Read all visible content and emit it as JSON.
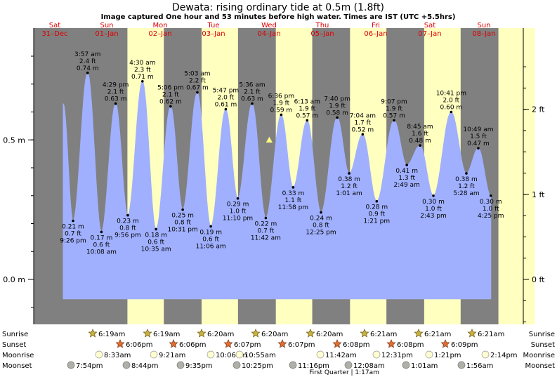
{
  "header": {
    "title": "Dewata: rising  ordinary tide at 0.5m (1.8ft)",
    "subtitle": "Image captured One hour and 53 minutes before high water. Times are IST (UTC +5.5hrs)"
  },
  "colors": {
    "night": "#808080",
    "day": "#ffffc0",
    "tide_fill": "#a0b0ff",
    "tide_stroke": "#a0b0ff",
    "day_label": "#dd0000",
    "marker": "#ffff80"
  },
  "chart_data": {
    "type": "area",
    "title": "Dewata: rising  ordinary tide at 0.5m (1.8ft)",
    "y_left_unit": "m",
    "y_right_unit": "ft",
    "y_left_ticks": [
      {
        "value": 0.5,
        "label": "0.5 m"
      },
      {
        "value": 0.0,
        "label": "0.0 m"
      }
    ],
    "y_right_ticks": [
      {
        "value": 2,
        "label": "2 ft"
      },
      {
        "value": 1,
        "label": "1 ft"
      },
      {
        "value": 0,
        "label": "0 ft"
      }
    ],
    "days": [
      {
        "dow": "Sat",
        "date": "31–Dec"
      },
      {
        "dow": "Sun",
        "date": "01–Jan"
      },
      {
        "dow": "Mon",
        "date": "02–Jan"
      },
      {
        "dow": "Tue",
        "date": "03–Jan"
      },
      {
        "dow": "Wed",
        "date": "04–Jan"
      },
      {
        "dow": "Thu",
        "date": "05–Jan"
      },
      {
        "dow": "Fri",
        "date": "06–Jan"
      },
      {
        "dow": "Sat",
        "date": "07–Jan"
      },
      {
        "dow": "Sun",
        "date": "08–Jan"
      }
    ],
    "tides": [
      {
        "type": "low",
        "time": "9:26 pm",
        "m": 0.21,
        "m_label": "0.21 m",
        "ft": "0.7 ft"
      },
      {
        "type": "high",
        "time": "3:57 am",
        "m": 0.74,
        "m_label": "0.74 m",
        "ft": "2.4 ft"
      },
      {
        "type": "low",
        "time": "10:08 am",
        "m": 0.17,
        "m_label": "0.17 m",
        "ft": "0.6 ft"
      },
      {
        "type": "high",
        "time": "4:29 pm",
        "m": 0.63,
        "m_label": "0.63 m",
        "ft": "2.1 ft"
      },
      {
        "type": "low",
        "time": "9:56 pm",
        "m": 0.23,
        "m_label": "0.23 m",
        "ft": "0.8 ft"
      },
      {
        "type": "high",
        "time": "4:30 am",
        "m": 0.71,
        "m_label": "0.71 m",
        "ft": "2.3 ft"
      },
      {
        "type": "low",
        "time": "10:35 am",
        "m": 0.18,
        "m_label": "0.18 m",
        "ft": "0.6 ft"
      },
      {
        "type": "high",
        "time": "5:06 pm",
        "m": 0.62,
        "m_label": "0.62 m",
        "ft": "2.1 ft"
      },
      {
        "type": "low",
        "time": "10:31 pm",
        "m": 0.25,
        "m_label": "0.25 m",
        "ft": "0.8 ft"
      },
      {
        "type": "high",
        "time": "5:03 am",
        "m": 0.67,
        "m_label": "0.67 m",
        "ft": "2.2 ft"
      },
      {
        "type": "low",
        "time": "11:06 am",
        "m": 0.19,
        "m_label": "0.19 m",
        "ft": "0.6 ft"
      },
      {
        "type": "high",
        "time": "5:47 pm",
        "m": 0.61,
        "m_label": "0.61 m",
        "ft": "2.0 ft"
      },
      {
        "type": "low",
        "time": "11:10 pm",
        "m": 0.29,
        "m_label": "0.29 m",
        "ft": "1.0 ft"
      },
      {
        "type": "high",
        "time": "5:36 am",
        "m": 0.63,
        "m_label": "0.63 m",
        "ft": "2.1 ft"
      },
      {
        "type": "low",
        "time": "11:42 am",
        "m": 0.22,
        "m_label": "0.22 m",
        "ft": "0.7 ft"
      },
      {
        "type": "high",
        "time": "6:36 pm",
        "m": 0.59,
        "m_label": "0.59 m",
        "ft": "1.9 ft"
      },
      {
        "type": "low",
        "time": "11:58 pm",
        "m": 0.33,
        "m_label": "0.33 m",
        "ft": "1.1 ft"
      },
      {
        "type": "high",
        "time": "6:13 am",
        "m": 0.57,
        "m_label": "0.57 m",
        "ft": "1.9 ft"
      },
      {
        "type": "low",
        "time": "12:25 pm",
        "m": 0.24,
        "m_label": "0.24 m",
        "ft": "0.8 ft"
      },
      {
        "type": "high",
        "time": "7:40 pm",
        "m": 0.58,
        "m_label": "0.58 m",
        "ft": "1.9 ft"
      },
      {
        "type": "low",
        "time": "1:01 am",
        "m": 0.38,
        "m_label": "0.38 m",
        "ft": "1.2 ft"
      },
      {
        "type": "high",
        "time": "7:04 am",
        "m": 0.52,
        "m_label": "0.52 m",
        "ft": "1.7 ft"
      },
      {
        "type": "low",
        "time": "1:21 pm",
        "m": 0.28,
        "m_label": "0.28 m",
        "ft": "0.9 ft"
      },
      {
        "type": "high",
        "time": "9:07 pm",
        "m": 0.57,
        "m_label": "0.57 m",
        "ft": "1.9 ft"
      },
      {
        "type": "low",
        "time": "2:49 am",
        "m": 0.41,
        "m_label": "0.41 m",
        "ft": "1.3 ft"
      },
      {
        "type": "high",
        "time": "8:45 am",
        "m": 0.48,
        "m_label": "0.48 m",
        "ft": "1.6 ft"
      },
      {
        "type": "low",
        "time": "2:43 pm",
        "m": 0.3,
        "m_label": "0.30 m",
        "ft": "1.0 ft"
      },
      {
        "type": "high",
        "time": "10:41 pm",
        "m": 0.6,
        "m_label": "0.60 m",
        "ft": "2.0 ft"
      },
      {
        "type": "low",
        "time": "5:28 am",
        "m": 0.38,
        "m_label": "0.38 m",
        "ft": "1.2 ft"
      },
      {
        "type": "high",
        "time": "10:49 am",
        "m": 0.47,
        "m_label": "0.47 m",
        "ft": "1.5 ft"
      },
      {
        "type": "low",
        "time": "4:25 pm",
        "m": 0.3,
        "m_label": "0.30 m",
        "ft": "1.0 ft"
      }
    ],
    "current_level_m": 0.5
  },
  "rows": {
    "sunrise_label": "Sunrise",
    "sunset_label": "Sunset",
    "moonrise_label": "Moonrise",
    "moonset_label": "Moonset",
    "sunrise": [
      "6:19am",
      "6:19am",
      "6:20am",
      "6:20am",
      "6:20am",
      "6:21am",
      "6:21am",
      "6:21am"
    ],
    "sunset": [
      "6:06pm",
      "6:06pm",
      "6:07pm",
      "6:07pm",
      "6:08pm",
      "6:08pm",
      "6:09pm"
    ],
    "moonrise": [
      "8:33am",
      "9:21am",
      "10:06am",
      "10:55am",
      "11:42am",
      "12:31pm",
      "1:21pm",
      "2:14pm"
    ],
    "moonset": [
      "7:54pm",
      "8:44pm",
      "9:35pm",
      "10:25pm",
      "11:16pm",
      "12:08am",
      "1:01am",
      "1:56am"
    ],
    "moon_phase": "First Quarter | 1:17am"
  }
}
